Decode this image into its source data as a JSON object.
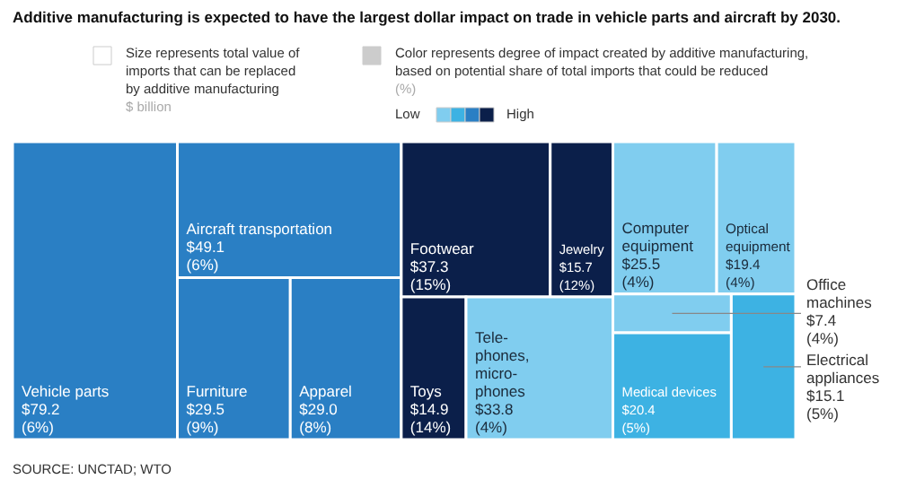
{
  "chart_data": {
    "type": "other",
    "title": "Additive manufacturing is expected to have the largest dollar impact on trade in vehicle parts and aircraft by 2030.",
    "categories": [
      "Vehicle parts",
      "Aircraft transportation",
      "Furniture",
      "Apparel",
      "Footwear",
      "Jewelry",
      "Toys",
      "Tele-\nphones,\nmicro-\nphones",
      "Computer\nequipment",
      "Optical\nequipment",
      "Office\nmachines",
      "Medical devices",
      "Electrical\nappliances"
    ],
    "values": [
      79.2,
      49.1,
      29.5,
      29.0,
      37.3,
      15.7,
      14.9,
      33.8,
      25.5,
      19.4,
      7.4,
      20.4,
      15.1
    ],
    "value_labels": [
      "$79.2\n(6%)",
      "$49.1\n(6%)",
      "$29.5\n(9%)",
      "$29.0\n(8%)",
      "$37.3\n(15%)",
      "$15.7\n(12%)",
      "$14.9\n(14%)",
      "$33.8\n(4%)",
      "$25.5\n(4%)",
      "$19.4\n(4%)",
      "$7.4\n(4%)",
      "$20.4\n(5%)",
      "$15.1\n(5%)"
    ],
    "colors": [
      "#2a7fc4",
      "#2a7fc4",
      "#2a7fc4",
      "#2a7fc4",
      "#0b1f4a",
      "#0b1f4a",
      "#0b1f4a",
      "#80cdef",
      "#80cdef",
      "#80cdef",
      "#80cdef",
      "#3db2e3",
      "#3db2e3"
    ],
    "annotations": [
      "Size represents total value of\nimports that can be replaced\nby additive manufacturing",
      "$ billion",
      "Color represents degree of impact created by additive manufacturing,\nbased on potential share of total imports that could be reduced",
      "(%)",
      "Low",
      "High",
      "SOURCE: UNCTAD; WTO"
    ]
  }
}
